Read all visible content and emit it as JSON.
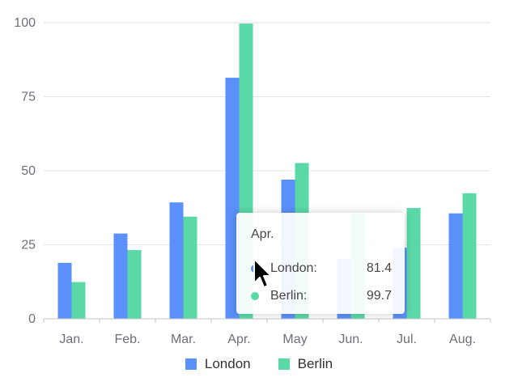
{
  "chart_data": {
    "type": "bar",
    "title": "",
    "xlabel": "",
    "ylabel": "",
    "categories": [
      "Jan.",
      "Feb.",
      "Mar.",
      "Apr.",
      "May",
      "Jun.",
      "Jul.",
      "Aug."
    ],
    "series": [
      {
        "name": "London",
        "color": "#5b8ff9",
        "values": [
          18.9,
          28.8,
          39.3,
          81.4,
          47,
          20.3,
          24,
          35.6
        ]
      },
      {
        "name": "Berlin",
        "color": "#5ad8a6",
        "values": [
          12.4,
          23.2,
          34.5,
          99.7,
          52.6,
          35.5,
          37.4,
          42.4
        ]
      }
    ],
    "ylim": [
      0,
      100
    ],
    "yticks": [
      0,
      25,
      50,
      75,
      100
    ],
    "grid": true,
    "legend_position": "bottom"
  },
  "tooltip": {
    "title": "Apr.",
    "rows": [
      {
        "name": "London:",
        "value": "81.4",
        "color": "#5b8ff9"
      },
      {
        "name": "Berlin:",
        "value": "99.7",
        "color": "#5ad8a6"
      }
    ]
  },
  "cursor_icon": "arrow-cursor-icon"
}
